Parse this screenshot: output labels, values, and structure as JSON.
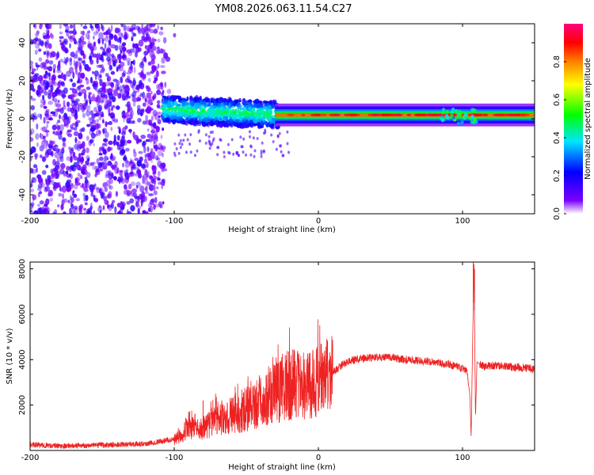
{
  "title": "YM08.2026.063.11.54.C27",
  "chart_data": [
    {
      "type": "heatmap",
      "name": "spectrogram",
      "xlabel": "Height of straight line (km)",
      "ylabel": "Frequency (Hz)",
      "xlim": [
        -200,
        150
      ],
      "ylim": [
        -50,
        50
      ],
      "xticks": [
        "-200",
        "-100",
        "0",
        "100"
      ],
      "xtick_values": [
        -200,
        -100,
        0,
        100
      ],
      "yticks": [
        "-40",
        "-20",
        "0",
        "20",
        "40"
      ],
      "ytick_values": [
        -40,
        -20,
        0,
        20,
        40
      ],
      "colorbar": {
        "label": "Normalized spectral amplitude",
        "ticks": [
          "0.0",
          "0.2",
          "0.4",
          "0.6",
          "0.8"
        ],
        "tick_values": [
          0.0,
          0.2,
          0.4,
          0.6,
          0.8
        ],
        "range": [
          0,
          1
        ],
        "colormap": [
          "#ffffff",
          "#7a00ff",
          "#0000ff",
          "#00e5ff",
          "#00ff00",
          "#ffff00",
          "#ff8000",
          "#ff0000",
          "#ff007f"
        ]
      },
      "regions": [
        {
          "x": [
            -200,
            -107
          ],
          "freq": [
            -50,
            50
          ],
          "level": 0.15,
          "pattern": "scattered noise"
        },
        {
          "x": [
            -107,
            -30
          ],
          "freq": [
            -8,
            12
          ],
          "level": 0.3,
          "pattern": "broad band"
        },
        {
          "x": [
            -30,
            150
          ],
          "center_freq": 2,
          "level": 0.8,
          "pattern": "narrow line"
        },
        {
          "x": [
            85,
            110
          ],
          "freq": [
            -3,
            5
          ],
          "level": 0.45,
          "pattern": "blobs"
        }
      ]
    },
    {
      "type": "line",
      "name": "snr",
      "xlabel": "Height of straight line (km)",
      "ylabel": "SNR (10 * v/v)",
      "xlim": [
        -200,
        150
      ],
      "ylim": [
        0,
        8300
      ],
      "xticks": [
        "-200",
        "-100",
        "0",
        "100"
      ],
      "xtick_values": [
        -200,
        -100,
        0,
        100
      ],
      "yticks": [
        "2000",
        "4000",
        "6000",
        "8000"
      ],
      "ytick_values": [
        2000,
        4000,
        6000,
        8000
      ],
      "color": "#ee2222",
      "series": [
        {
          "name": "SNR",
          "x": [
            -200,
            -180,
            -160,
            -140,
            -120,
            -110,
            -100,
            -95,
            -90,
            -85,
            -80,
            -75,
            -70,
            -65,
            -60,
            -55,
            -50,
            -45,
            -40,
            -35,
            -30,
            -25,
            -20,
            -15,
            -10,
            -5,
            0,
            5,
            10,
            15,
            20,
            25,
            30,
            40,
            50,
            60,
            70,
            80,
            90,
            100,
            103,
            105,
            106,
            107,
            108,
            109,
            110,
            112,
            115,
            120,
            130,
            140,
            150
          ],
          "values": [
            250,
            200,
            220,
            250,
            300,
            400,
            500,
            700,
            1100,
            900,
            1000,
            1200,
            1400,
            1300,
            1600,
            1700,
            1800,
            1900,
            2200,
            2300,
            2500,
            2800,
            2900,
            3000,
            2800,
            2900,
            3100,
            3200,
            3400,
            3700,
            3900,
            4000,
            4050,
            4100,
            4100,
            4000,
            3950,
            3900,
            3800,
            3600,
            3500,
            2500,
            600,
            4800,
            8200,
            1400,
            3900,
            3800,
            3700,
            3750,
            3700,
            3650,
            3600
          ]
        }
      ],
      "spikes": [
        {
          "x": -80,
          "value": 2200
        },
        {
          "x": -45,
          "value": 2800
        },
        {
          "x": -17,
          "value": 4450
        },
        {
          "x": 107.5,
          "value": 8300
        },
        {
          "x": 108.3,
          "value": 8000
        }
      ]
    }
  ]
}
